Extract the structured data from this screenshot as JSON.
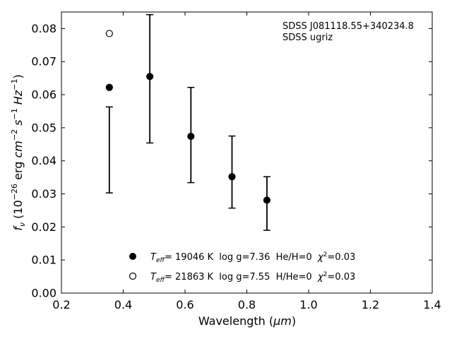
{
  "chart_data": {
    "type": "scatter",
    "xlabel_main": "Wavelength (",
    "xlabel_unit": "μm",
    "xlabel_end": ")",
    "ylabel": {
      "f": "f",
      "f_sub": "ν",
      "open": " (10",
      "exp1": "−26",
      "mid": " erg ",
      "cm": "cm",
      "exp2": "−2",
      "s": " s",
      "exp3": "−1",
      "hz": " Hz",
      "exp4": "−1",
      "close": ")"
    },
    "xlim": [
      0.2,
      1.4
    ],
    "ylim": [
      0.0,
      0.085
    ],
    "xticks": [
      "0.2",
      "0.4",
      "0.6",
      "0.8",
      "1.0",
      "1.2",
      "1.4"
    ],
    "xtick_values": [
      0.2,
      0.4,
      0.6,
      0.8,
      1.0,
      1.2,
      1.4
    ],
    "yticks": [
      "0.00",
      "0.01",
      "0.02",
      "0.03",
      "0.04",
      "0.05",
      "0.06",
      "0.07",
      "0.08"
    ],
    "ytick_values": [
      0.0,
      0.01,
      0.02,
      0.03,
      0.04,
      0.05,
      0.06,
      0.07,
      0.08
    ],
    "grid": false,
    "annotation": [
      "SDSS J081118.55+340234.8",
      "SDSS ugriz"
    ],
    "observed": [
      {
        "x": 0.355,
        "y": 0.0433,
        "err": 0.013
      },
      {
        "x": 0.486,
        "y": 0.0648,
        "err": 0.0194
      },
      {
        "x": 0.619,
        "y": 0.0478,
        "err": 0.0144
      },
      {
        "x": 0.752,
        "y": 0.0366,
        "err": 0.0109
      },
      {
        "x": 0.865,
        "y": 0.0271,
        "err": 0.0081
      }
    ],
    "series": [
      {
        "marker": "filled",
        "x": [
          0.355,
          0.486,
          0.619,
          0.752,
          0.865
        ],
        "y": [
          0.0622,
          0.0655,
          0.0474,
          0.0352,
          0.0281
        ]
      },
      {
        "marker": "open",
        "x": [
          0.355
        ],
        "y": [
          0.0785
        ]
      }
    ],
    "legend": [
      {
        "marker": "filled",
        "teff": "T",
        "teff_sub": "eff",
        "rest": "= 19046 K  log g=7.36  He/H=0  ",
        "chi": "χ",
        "chi_sup": "2",
        "chi_val": "=0.03"
      },
      {
        "marker": "open",
        "teff": "T",
        "teff_sub": "eff",
        "rest": "= 21863 K  log g=7.55  H/He=0  ",
        "chi": "χ",
        "chi_sup": "2",
        "chi_val": "=0.03"
      }
    ]
  }
}
